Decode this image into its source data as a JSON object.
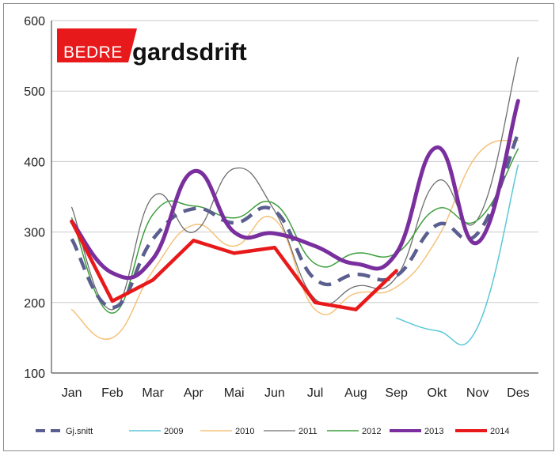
{
  "chart_data": {
    "type": "line",
    "categories": [
      "Jan",
      "Feb",
      "Mar",
      "Apr",
      "Mai",
      "Jun",
      "Jul",
      "Aug",
      "Sep",
      "Okt",
      "Nov",
      "Des"
    ],
    "ylim": [
      100,
      600
    ],
    "yticks": [
      100,
      200,
      300,
      400,
      500,
      600
    ],
    "grid": true,
    "legend_position": "bottom",
    "series": [
      {
        "name": "2009",
        "color": "#5bc8d8",
        "width": 1.5,
        "dash": "",
        "smooth": true,
        "values": [
          null,
          null,
          null,
          null,
          null,
          null,
          null,
          null,
          178,
          160,
          165,
          395
        ]
      },
      {
        "name": "2010",
        "color": "#f5c27a",
        "width": 1.5,
        "dash": "",
        "smooth": true,
        "values": [
          190,
          150,
          245,
          310,
          280,
          318,
          190,
          213,
          222,
          290,
          410,
          430
        ]
      },
      {
        "name": "2011",
        "color": "#6e6e6e",
        "width": 1.3,
        "dash": "",
        "smooth": true,
        "values": [
          335,
          190,
          350,
          300,
          390,
          330,
          205,
          223,
          236,
          372,
          318,
          548
        ]
      },
      {
        "name": "2012",
        "color": "#3d9f3d",
        "width": 1.5,
        "dash": "",
        "smooth": true,
        "values": [
          320,
          185,
          325,
          337,
          320,
          340,
          255,
          270,
          270,
          333,
          317,
          418
        ]
      },
      {
        "name": "Gj.snitt",
        "color": "#5a5f8f",
        "width": 4.5,
        "dash": "16 10",
        "smooth": true,
        "values": [
          290,
          193,
          290,
          333,
          313,
          330,
          233,
          240,
          238,
          310,
          298,
          440
        ]
      },
      {
        "name": "2013",
        "color": "#7a2f9e",
        "width": 5,
        "dash": "",
        "smooth": true,
        "values": [
          315,
          242,
          262,
          386,
          300,
          298,
          280,
          255,
          270,
          420,
          285,
          486
        ]
      },
      {
        "name": "2014",
        "color": "#e8191b",
        "width": 4.5,
        "dash": "",
        "smooth": false,
        "values": [
          315,
          202,
          232,
          288,
          270,
          278,
          200,
          190,
          245,
          null,
          null,
          null
        ]
      }
    ],
    "legend_order": [
      "Gj.snitt",
      "2009",
      "2010",
      "2011",
      "2012",
      "2013",
      "2014"
    ]
  },
  "logo": {
    "bedre": "BEDRE",
    "gardsdrift": "gardsdrift",
    "bedre_bg": "#e8191b"
  }
}
